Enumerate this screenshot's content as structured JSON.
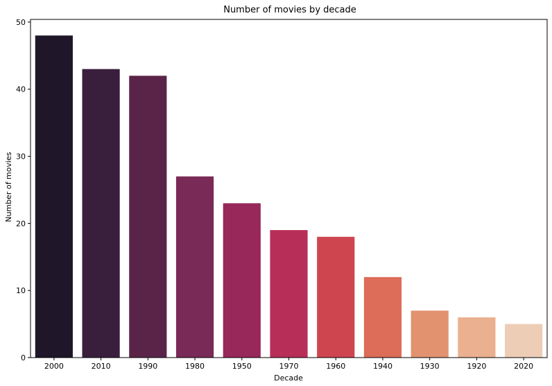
{
  "chart_data": {
    "type": "bar",
    "title": "Number of movies by decade",
    "xlabel": "Decade",
    "ylabel": "Number of movies",
    "categories": [
      "2000",
      "2010",
      "1990",
      "1980",
      "1950",
      "1970",
      "1960",
      "1940",
      "1930",
      "1920",
      "2020"
    ],
    "values": [
      48,
      43,
      42,
      27,
      23,
      19,
      18,
      12,
      7,
      6,
      5
    ],
    "colors": [
      "#1f1729",
      "#3a1f3d",
      "#5a2449",
      "#7a2a56",
      "#98285a",
      "#b72f58",
      "#ce4550",
      "#dd6c58",
      "#e3926f",
      "#eab08f",
      "#eecdb6"
    ],
    "ylim": [
      0,
      50.4
    ],
    "yticks": [
      0,
      10,
      20,
      30,
      40,
      50
    ],
    "grid": false,
    "legend": "none"
  }
}
